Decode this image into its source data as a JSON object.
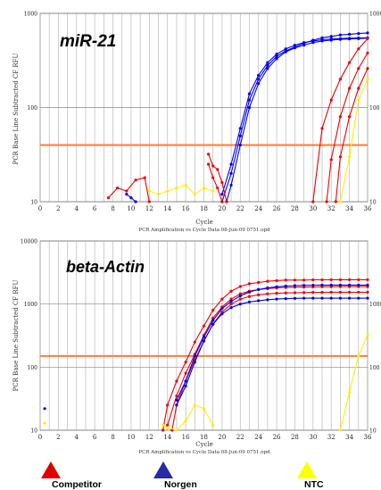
{
  "chart_data": [
    {
      "type": "line",
      "title": "miR-21",
      "ylabel": "PCR Base Line Subtracted CF RFU",
      "xlabel": "Cycle",
      "footer": "PCR Amplification vs Cycle Data 08-Jun-09 0751.opd",
      "ylim": [
        10,
        1000
      ],
      "yscale": "log",
      "xlim": [
        0,
        36
      ],
      "xticks": [
        "0",
        "2",
        "4",
        "6",
        "8",
        "10",
        "12",
        "14",
        "16",
        "18",
        "20",
        "22",
        "24",
        "26",
        "28",
        "30",
        "32",
        "34",
        "36"
      ],
      "yticks": [
        "10",
        "100",
        "1000"
      ],
      "yticks_right": [
        "10",
        "100",
        "1000"
      ],
      "threshold": 40,
      "grid": true,
      "series": [
        {
          "color": "#0000ee",
          "x": [
            20,
            21,
            22,
            23,
            24,
            25,
            26,
            27,
            28,
            29,
            30,
            31,
            32,
            33,
            34,
            35,
            36
          ],
          "y": [
            10,
            20,
            50,
            120,
            200,
            280,
            350,
            400,
            440,
            480,
            520,
            550,
            570,
            590,
            600,
            610,
            620
          ]
        },
        {
          "color": "#0000ee",
          "x": [
            20,
            21,
            22,
            23,
            24,
            25,
            26,
            27,
            28,
            29,
            30,
            31,
            32,
            33,
            34,
            35,
            36
          ],
          "y": [
            12,
            25,
            60,
            140,
            220,
            300,
            370,
            420,
            460,
            490,
            510,
            525,
            535,
            540,
            545,
            548,
            550
          ]
        },
        {
          "color": "#0000ee",
          "x": [
            20.5,
            21,
            22,
            23,
            24,
            25,
            26,
            27,
            28,
            29,
            30,
            31,
            32,
            33,
            34,
            35,
            36
          ],
          "y": [
            10,
            15,
            40,
            100,
            180,
            260,
            330,
            390,
            430,
            460,
            490,
            510,
            520,
            530,
            535,
            540,
            545
          ]
        },
        {
          "color": "#0000ee",
          "x": [
            9.5,
            10,
            10.5
          ],
          "y": [
            12,
            11,
            10
          ]
        },
        {
          "color": "#ee0000",
          "x": [
            7.5,
            8.5,
            9.5,
            10.5,
            11.5,
            12
          ],
          "y": [
            11,
            14,
            13,
            17,
            18,
            10
          ]
        },
        {
          "color": "#ee0000",
          "x": [
            18.5,
            19,
            19.5,
            20,
            20.5
          ],
          "y": [
            32,
            24,
            22,
            16,
            10
          ]
        },
        {
          "color": "#ee0000",
          "x": [
            18.5,
            19,
            19.5,
            20
          ],
          "y": [
            25,
            18,
            14,
            10
          ]
        },
        {
          "color": "#ee0000",
          "x": [
            30,
            31,
            32,
            33,
            34,
            35,
            36
          ],
          "y": [
            10,
            60,
            120,
            200,
            300,
            420,
            540
          ]
        },
        {
          "color": "#ee0000",
          "x": [
            31.5,
            32,
            33,
            34,
            35,
            36
          ],
          "y": [
            10,
            28,
            80,
            160,
            260,
            380
          ]
        },
        {
          "color": "#ee0000",
          "x": [
            32.5,
            33,
            34,
            35,
            36
          ],
          "y": [
            10,
            30,
            80,
            160,
            260
          ]
        },
        {
          "color": "#ffee00",
          "x": [
            12,
            13,
            14,
            15,
            16,
            17,
            18,
            19
          ],
          "y": [
            13,
            12,
            13,
            14,
            15,
            12,
            14,
            13
          ]
        },
        {
          "color": "#ffee00",
          "x": [
            33,
            34,
            35,
            36
          ],
          "y": [
            10,
            30,
            120,
            200
          ]
        }
      ]
    },
    {
      "type": "line",
      "title": "beta-Actin",
      "ylabel": "PCR Base Line Subtracted CF RFU",
      "xlabel": "Cycle",
      "footer": "PCR Amplification vs Cycle Data 08-Jun-09 0751.opd",
      "ylim": [
        10,
        10000
      ],
      "yscale": "log",
      "xlim": [
        0,
        36
      ],
      "xticks": [
        "0",
        "2",
        "4",
        "6",
        "8",
        "10",
        "12",
        "14",
        "16",
        "18",
        "20",
        "22",
        "24",
        "26",
        "28",
        "30",
        "32",
        "34",
        "36"
      ],
      "yticks": [
        "10",
        "100",
        "1000",
        "10000"
      ],
      "yticks_right": [
        "10",
        "100",
        "1000"
      ],
      "threshold": 150,
      "grid": true,
      "series": [
        {
          "color": "#ee0000",
          "x": [
            13.5,
            14,
            15,
            16,
            17,
            18,
            19,
            20,
            21,
            22,
            23,
            24,
            25,
            26,
            27,
            28,
            29,
            30,
            31,
            32,
            33,
            34,
            35,
            36
          ],
          "y": [
            10,
            25,
            60,
            120,
            250,
            450,
            800,
            1200,
            1600,
            1900,
            2100,
            2200,
            2300,
            2350,
            2400,
            2400,
            2400,
            2420,
            2420,
            2430,
            2430,
            2430,
            2430,
            2430
          ]
        },
        {
          "color": "#ee0000",
          "x": [
            14,
            15,
            16,
            17,
            18,
            19,
            20,
            21,
            22,
            23,
            24,
            25,
            26,
            27,
            28,
            29,
            30,
            31,
            32,
            33,
            34,
            35,
            36
          ],
          "y": [
            12,
            35,
            80,
            160,
            320,
            600,
            900,
            1200,
            1450,
            1600,
            1700,
            1760,
            1800,
            1830,
            1850,
            1860,
            1870,
            1880,
            1885,
            1890,
            1890,
            1890,
            1890
          ]
        },
        {
          "color": "#ee0000",
          "x": [
            14.5,
            15,
            16,
            17,
            18,
            19,
            20,
            21,
            22,
            23,
            24,
            25,
            26,
            27,
            28,
            29,
            30,
            31,
            32,
            33,
            34,
            35,
            36
          ],
          "y": [
            10,
            25,
            60,
            130,
            260,
            480,
            750,
            1000,
            1200,
            1320,
            1400,
            1450,
            1480,
            1500,
            1510,
            1520,
            1530,
            1530,
            1540,
            1540,
            1540,
            1540,
            1540
          ]
        },
        {
          "color": "#0000ee",
          "x": [
            15,
            16,
            17,
            18,
            19,
            20,
            21,
            22,
            23,
            24,
            25,
            26,
            27,
            28,
            29,
            30,
            31,
            32,
            33,
            34,
            35,
            36
          ],
          "y": [
            30,
            60,
            150,
            300,
            550,
            850,
            1100,
            1350,
            1550,
            1700,
            1800,
            1880,
            1930,
            1960,
            1980,
            1990,
            2000,
            2000,
            2000,
            2000,
            2000,
            2000
          ]
        },
        {
          "color": "#0000ee",
          "x": [
            15,
            16,
            17,
            18,
            19,
            20,
            21,
            22,
            23,
            24,
            25,
            26,
            27,
            28,
            29,
            30,
            31,
            32,
            33,
            34,
            35,
            36
          ],
          "y": [
            25,
            50,
            120,
            260,
            480,
            700,
            880,
            1000,
            1080,
            1130,
            1170,
            1200,
            1220,
            1230,
            1240,
            1240,
            1240,
            1240,
            1240,
            1240,
            1240,
            1240
          ]
        },
        {
          "color": "#0000ee",
          "x": [
            0.5
          ],
          "y": [
            22
          ]
        },
        {
          "color": "#ffee00",
          "x": [
            0.5
          ],
          "y": [
            13
          ]
        },
        {
          "color": "#ffee00",
          "x": [
            13.5,
            14,
            15,
            16,
            17,
            18,
            19
          ],
          "y": [
            12,
            11,
            10,
            14,
            25,
            22,
            12
          ]
        },
        {
          "color": "#ffee00",
          "x": [
            33,
            34,
            35,
            36
          ],
          "y": [
            10,
            40,
            150,
            320
          ]
        }
      ]
    }
  ],
  "legend": [
    {
      "label": "Competitor",
      "color": "#e00000"
    },
    {
      "label": "Norgen",
      "color": "#2a2aa8"
    },
    {
      "label": "NTC",
      "color": "#ffff00"
    }
  ],
  "threshold_color": "#ff7a3c"
}
